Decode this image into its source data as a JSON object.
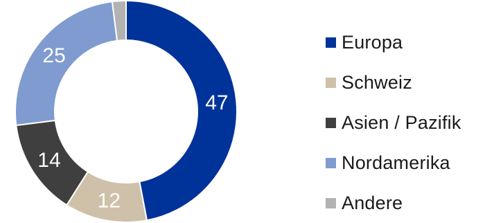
{
  "chart_data": {
    "type": "pie",
    "subtype": "donut",
    "title": "",
    "series": [
      {
        "name": "",
        "values": [
          47,
          12,
          14,
          25,
          2
        ],
        "labels": [
          "47",
          "12",
          "14",
          "25",
          ""
        ]
      }
    ],
    "categories": [
      "Europa",
      "Schweiz",
      "Asien / Pazifik",
      "Nordamerika",
      "Andere"
    ],
    "colors": [
      "#003399",
      "#cfc0aa",
      "#3f3f3f",
      "#7f9bd0",
      "#b2b2b2"
    ],
    "legend_position": "right",
    "data_label_color": "#ffffff"
  }
}
